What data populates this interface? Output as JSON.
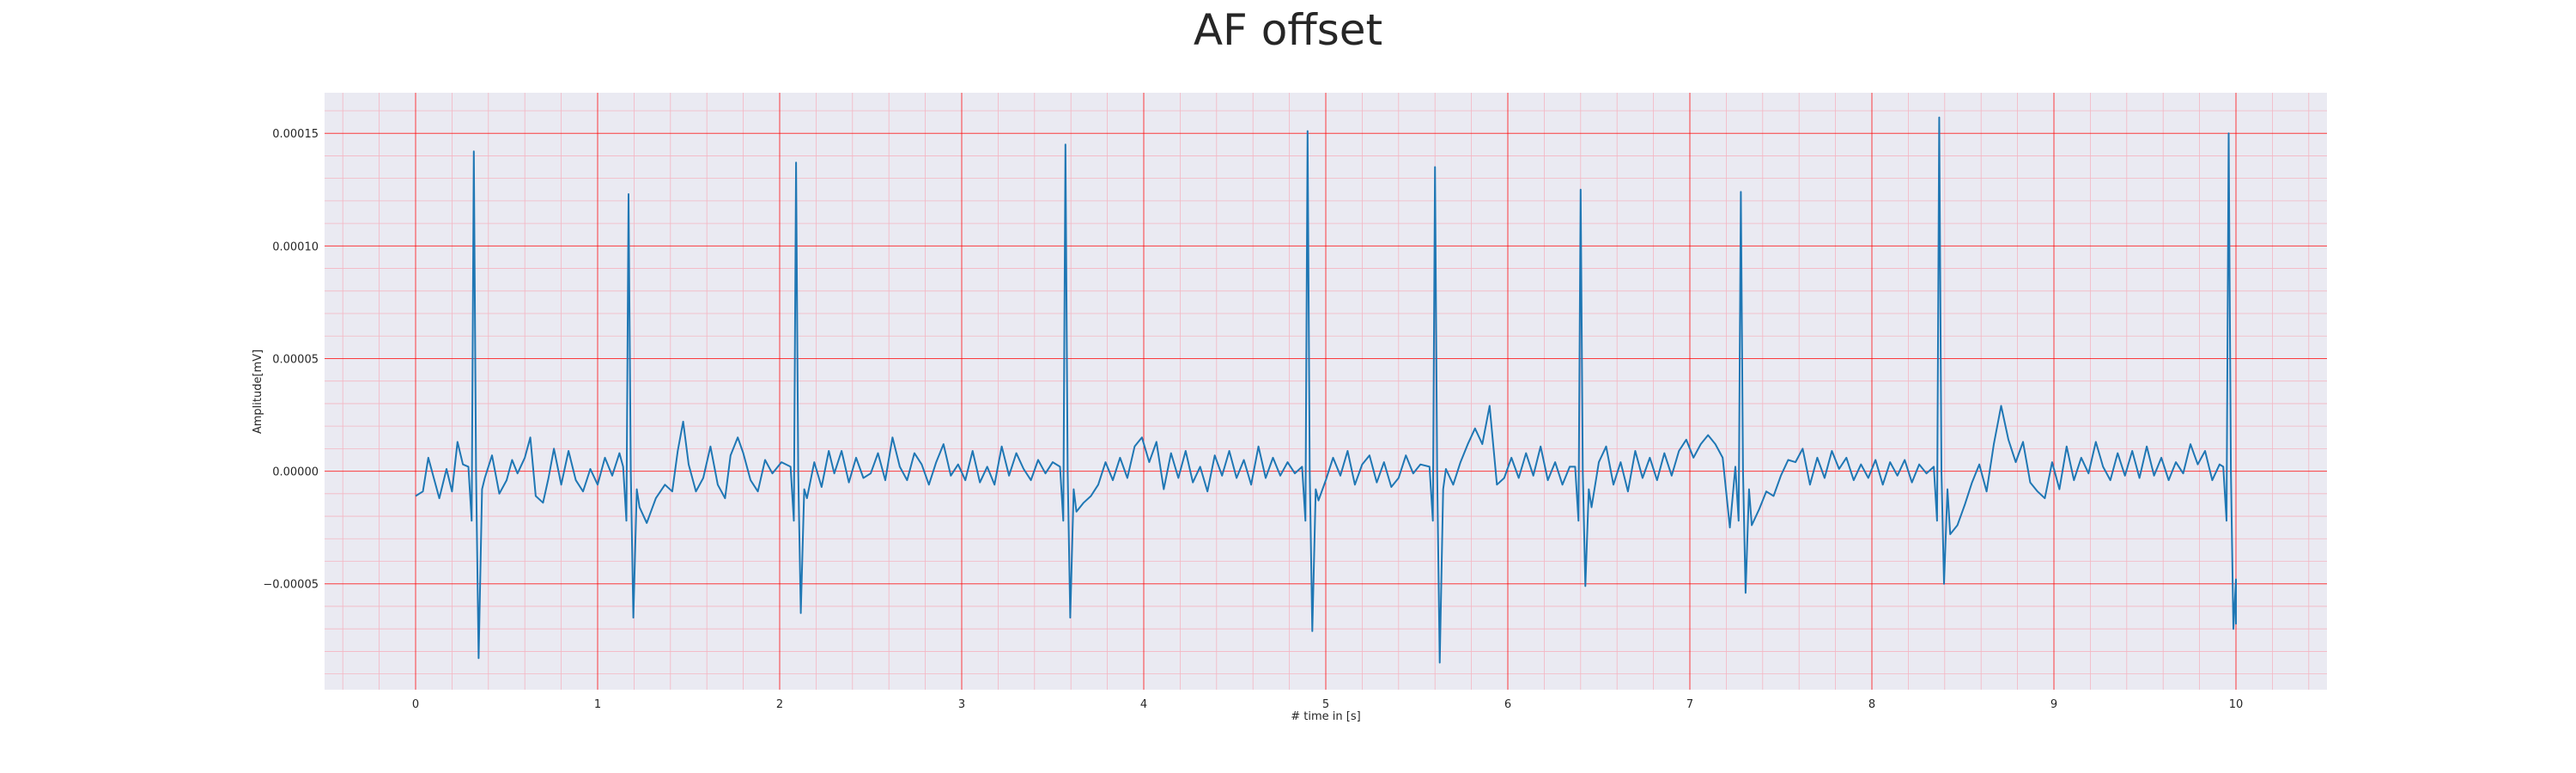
{
  "chart_data": {
    "type": "line",
    "title": "AF offset",
    "xlabel": "# time in [s]",
    "ylabel": "Amplitude[mV]",
    "xlim": [
      -0.5,
      10.5
    ],
    "ylim": [
      -9.7e-05,
      0.000168
    ],
    "xticks": [
      0,
      1,
      2,
      3,
      4,
      5,
      6,
      7,
      8,
      9,
      10
    ],
    "xtick_labels": [
      "0",
      "1",
      "2",
      "3",
      "4",
      "5",
      "6",
      "7",
      "8",
      "9",
      "10"
    ],
    "yticks": [
      -5e-05,
      0.0,
      5e-05,
      0.0001,
      0.00015
    ],
    "ytick_labels": [
      "−0.00005",
      "0.00000",
      "0.00005",
      "0.00010",
      "0.00015"
    ],
    "grid": "on",
    "minor_grid": "on",
    "colors": {
      "line": "#1f77b4",
      "background": "#eaeaf2",
      "major_grid": "#ff0000",
      "minor_grid": "#f4b6c2"
    },
    "beats": [
      {
        "t": 0.32,
        "peak": 0.000142,
        "trough": -8.3e-05
      },
      {
        "t": 1.17,
        "peak": 0.000123,
        "trough": -6.5e-05
      },
      {
        "t": 2.09,
        "peak": 0.000137,
        "trough": -6.3e-05
      },
      {
        "t": 3.57,
        "peak": 0.000145,
        "trough": -6.5e-05
      },
      {
        "t": 4.9,
        "peak": 0.000151,
        "trough": -7.1e-05
      },
      {
        "t": 5.6,
        "peak": 0.000135,
        "trough": -8.5e-05
      },
      {
        "t": 6.4,
        "peak": 0.000125,
        "trough": -5.1e-05
      },
      {
        "t": 7.28,
        "peak": 0.000124,
        "trough": -5.4e-05
      },
      {
        "t": 8.37,
        "peak": 0.000157,
        "trough": -5e-05
      },
      {
        "t": 9.96,
        "peak": 0.00015,
        "trough": -7e-05
      }
    ],
    "baseline_points": [
      [
        0.0,
        -1.1e-05
      ],
      [
        0.04,
        -9e-06
      ],
      [
        0.07,
        6e-06
      ],
      [
        0.1,
        -3e-06
      ],
      [
        0.13,
        -1.2e-05
      ],
      [
        0.17,
        1e-06
      ],
      [
        0.2,
        -9e-06
      ],
      [
        0.23,
        1.3e-05
      ],
      [
        0.26,
        3e-06
      ],
      [
        0.38,
        -3e-06
      ],
      [
        0.42,
        7e-06
      ],
      [
        0.46,
        -1e-05
      ],
      [
        0.5,
        -4e-06
      ],
      [
        0.53,
        5e-06
      ],
      [
        0.56,
        -1e-06
      ],
      [
        0.6,
        6e-06
      ],
      [
        0.63,
        1.5e-05
      ],
      [
        0.66,
        -1.1e-05
      ],
      [
        0.7,
        -1.4e-05
      ],
      [
        0.73,
        -3e-06
      ],
      [
        0.76,
        1e-05
      ],
      [
        0.8,
        -6e-06
      ],
      [
        0.84,
        9e-06
      ],
      [
        0.88,
        -4e-06
      ],
      [
        0.92,
        -9e-06
      ],
      [
        0.96,
        1e-06
      ],
      [
        1.0,
        -6e-06
      ],
      [
        1.04,
        6e-06
      ],
      [
        1.08,
        -2e-06
      ],
      [
        1.12,
        8e-06
      ],
      [
        1.23,
        -1.6e-05
      ],
      [
        1.27,
        -2.3e-05
      ],
      [
        1.32,
        -1.2e-05
      ],
      [
        1.37,
        -6e-06
      ],
      [
        1.41,
        -9e-06
      ],
      [
        1.44,
        9e-06
      ],
      [
        1.47,
        2.2e-05
      ],
      [
        1.5,
        3e-06
      ],
      [
        1.54,
        -9e-06
      ],
      [
        1.58,
        -3e-06
      ],
      [
        1.62,
        1.1e-05
      ],
      [
        1.66,
        -6e-06
      ],
      [
        1.7,
        -1.2e-05
      ],
      [
        1.73,
        7e-06
      ],
      [
        1.77,
        1.5e-05
      ],
      [
        1.8,
        8e-06
      ],
      [
        1.84,
        -4e-06
      ],
      [
        1.88,
        -9e-06
      ],
      [
        1.92,
        5e-06
      ],
      [
        1.96,
        -1e-06
      ],
      [
        2.01,
        4e-06
      ],
      [
        2.15,
        -1.2e-05
      ],
      [
        2.19,
        4e-06
      ],
      [
        2.23,
        -7e-06
      ],
      [
        2.27,
        9e-06
      ],
      [
        2.3,
        -1e-06
      ],
      [
        2.34,
        9e-06
      ],
      [
        2.38,
        -5e-06
      ],
      [
        2.42,
        6e-06
      ],
      [
        2.46,
        -3e-06
      ],
      [
        2.5,
        -1e-06
      ],
      [
        2.54,
        8e-06
      ],
      [
        2.58,
        -4e-06
      ],
      [
        2.62,
        1.5e-05
      ],
      [
        2.66,
        2e-06
      ],
      [
        2.7,
        -4e-06
      ],
      [
        2.74,
        8e-06
      ],
      [
        2.78,
        3e-06
      ],
      [
        2.82,
        -6e-06
      ],
      [
        2.86,
        4e-06
      ],
      [
        2.9,
        1.2e-05
      ],
      [
        2.94,
        -2e-06
      ],
      [
        2.98,
        3e-06
      ],
      [
        3.02,
        -4e-06
      ],
      [
        3.06,
        9e-06
      ],
      [
        3.1,
        -5e-06
      ],
      [
        3.14,
        2e-06
      ],
      [
        3.18,
        -6e-06
      ],
      [
        3.22,
        1.1e-05
      ],
      [
        3.26,
        -2e-06
      ],
      [
        3.3,
        8e-06
      ],
      [
        3.34,
        1e-06
      ],
      [
        3.38,
        -4e-06
      ],
      [
        3.42,
        5e-06
      ],
      [
        3.46,
        -1e-06
      ],
      [
        3.5,
        4e-06
      ],
      [
        3.63,
        -1.8e-05
      ],
      [
        3.67,
        -1.4e-05
      ],
      [
        3.71,
        -1.1e-05
      ],
      [
        3.75,
        -6e-06
      ],
      [
        3.79,
        4e-06
      ],
      [
        3.83,
        -4e-06
      ],
      [
        3.87,
        6e-06
      ],
      [
        3.91,
        -3e-06
      ],
      [
        3.95,
        1.1e-05
      ],
      [
        3.99,
        1.5e-05
      ],
      [
        4.03,
        4e-06
      ],
      [
        4.07,
        1.3e-05
      ],
      [
        4.11,
        -8e-06
      ],
      [
        4.15,
        8e-06
      ],
      [
        4.19,
        -3e-06
      ],
      [
        4.23,
        9e-06
      ],
      [
        4.27,
        -5e-06
      ],
      [
        4.31,
        2e-06
      ],
      [
        4.35,
        -9e-06
      ],
      [
        4.39,
        7e-06
      ],
      [
        4.43,
        -2e-06
      ],
      [
        4.47,
        9e-06
      ],
      [
        4.51,
        -3e-06
      ],
      [
        4.55,
        5e-06
      ],
      [
        4.59,
        -6e-06
      ],
      [
        4.63,
        1.1e-05
      ],
      [
        4.67,
        -3e-06
      ],
      [
        4.71,
        6e-06
      ],
      [
        4.75,
        -2e-06
      ],
      [
        4.79,
        4e-06
      ],
      [
        4.83,
        -1e-06
      ],
      [
        4.96,
        -1.3e-05
      ],
      [
        5.0,
        -4e-06
      ],
      [
        5.04,
        6e-06
      ],
      [
        5.08,
        -2e-06
      ],
      [
        5.12,
        9e-06
      ],
      [
        5.16,
        -6e-06
      ],
      [
        5.2,
        3e-06
      ],
      [
        5.24,
        7e-06
      ],
      [
        5.28,
        -5e-06
      ],
      [
        5.32,
        4e-06
      ],
      [
        5.36,
        -7e-06
      ],
      [
        5.4,
        -3e-06
      ],
      [
        5.44,
        7e-06
      ],
      [
        5.48,
        -1e-06
      ],
      [
        5.52,
        3e-06
      ],
      [
        5.66,
        1e-06
      ],
      [
        5.7,
        -6e-06
      ],
      [
        5.74,
        4e-06
      ],
      [
        5.78,
        1.2e-05
      ],
      [
        5.82,
        1.9e-05
      ],
      [
        5.86,
        1.2e-05
      ],
      [
        5.9,
        2.9e-05
      ],
      [
        5.94,
        -6e-06
      ],
      [
        5.98,
        -3e-06
      ],
      [
        6.02,
        6e-06
      ],
      [
        6.06,
        -3e-06
      ],
      [
        6.1,
        8e-06
      ],
      [
        6.14,
        -2e-06
      ],
      [
        6.18,
        1.1e-05
      ],
      [
        6.22,
        -4e-06
      ],
      [
        6.26,
        4e-06
      ],
      [
        6.3,
        -6e-06
      ],
      [
        6.34,
        2e-06
      ],
      [
        6.46,
        -1.6e-05
      ],
      [
        6.5,
        4e-06
      ],
      [
        6.54,
        1.1e-05
      ],
      [
        6.58,
        -6e-06
      ],
      [
        6.62,
        4e-06
      ],
      [
        6.66,
        -9e-06
      ],
      [
        6.7,
        9e-06
      ],
      [
        6.74,
        -3e-06
      ],
      [
        6.78,
        6e-06
      ],
      [
        6.82,
        -4e-06
      ],
      [
        6.86,
        8e-06
      ],
      [
        6.9,
        -2e-06
      ],
      [
        6.94,
        9e-06
      ],
      [
        6.98,
        1.4e-05
      ],
      [
        7.02,
        6e-06
      ],
      [
        7.06,
        1.2e-05
      ],
      [
        7.1,
        1.6e-05
      ],
      [
        7.14,
        1.2e-05
      ],
      [
        7.18,
        6e-06
      ],
      [
        7.22,
        -2.5e-05
      ],
      [
        7.34,
        -2.4e-05
      ],
      [
        7.38,
        -1.7e-05
      ],
      [
        7.42,
        -9e-06
      ],
      [
        7.46,
        -1.1e-05
      ],
      [
        7.5,
        -2e-06
      ],
      [
        7.54,
        5e-06
      ],
      [
        7.58,
        4e-06
      ],
      [
        7.62,
        1e-05
      ],
      [
        7.66,
        -6e-06
      ],
      [
        7.7,
        6e-06
      ],
      [
        7.74,
        -3e-06
      ],
      [
        7.78,
        9e-06
      ],
      [
        7.82,
        1e-06
      ],
      [
        7.86,
        6e-06
      ],
      [
        7.9,
        -4e-06
      ],
      [
        7.94,
        3e-06
      ],
      [
        7.98,
        -3e-06
      ],
      [
        8.02,
        5e-06
      ],
      [
        8.06,
        -6e-06
      ],
      [
        8.1,
        4e-06
      ],
      [
        8.14,
        -2e-06
      ],
      [
        8.18,
        5e-06
      ],
      [
        8.22,
        -5e-06
      ],
      [
        8.26,
        3e-06
      ],
      [
        8.3,
        -1e-06
      ],
      [
        8.43,
        -2.8e-05
      ],
      [
        8.47,
        -2.4e-05
      ],
      [
        8.51,
        -1.5e-05
      ],
      [
        8.55,
        -5e-06
      ],
      [
        8.59,
        3e-06
      ],
      [
        8.63,
        -9e-06
      ],
      [
        8.67,
        1.2e-05
      ],
      [
        8.71,
        2.9e-05
      ],
      [
        8.75,
        1.4e-05
      ],
      [
        8.79,
        4e-06
      ],
      [
        8.83,
        1.3e-05
      ],
      [
        8.87,
        -5e-06
      ],
      [
        8.91,
        -9e-06
      ],
      [
        8.95,
        -1.2e-05
      ],
      [
        8.99,
        4e-06
      ],
      [
        9.03,
        -8e-06
      ],
      [
        9.07,
        1.1e-05
      ],
      [
        9.11,
        -4e-06
      ],
      [
        9.15,
        6e-06
      ],
      [
        9.19,
        -1e-06
      ],
      [
        9.23,
        1.3e-05
      ],
      [
        9.27,
        2e-06
      ],
      [
        9.31,
        -4e-06
      ],
      [
        9.35,
        8e-06
      ],
      [
        9.39,
        -2e-06
      ],
      [
        9.43,
        9e-06
      ],
      [
        9.47,
        -3e-06
      ],
      [
        9.51,
        1.1e-05
      ],
      [
        9.55,
        -2e-06
      ],
      [
        9.59,
        6e-06
      ],
      [
        9.63,
        -4e-06
      ],
      [
        9.67,
        4e-06
      ],
      [
        9.71,
        -1e-06
      ],
      [
        9.75,
        1.2e-05
      ],
      [
        9.79,
        3e-06
      ],
      [
        9.83,
        9e-06
      ],
      [
        9.87,
        -4e-06
      ],
      [
        9.91,
        3e-06
      ]
    ]
  }
}
